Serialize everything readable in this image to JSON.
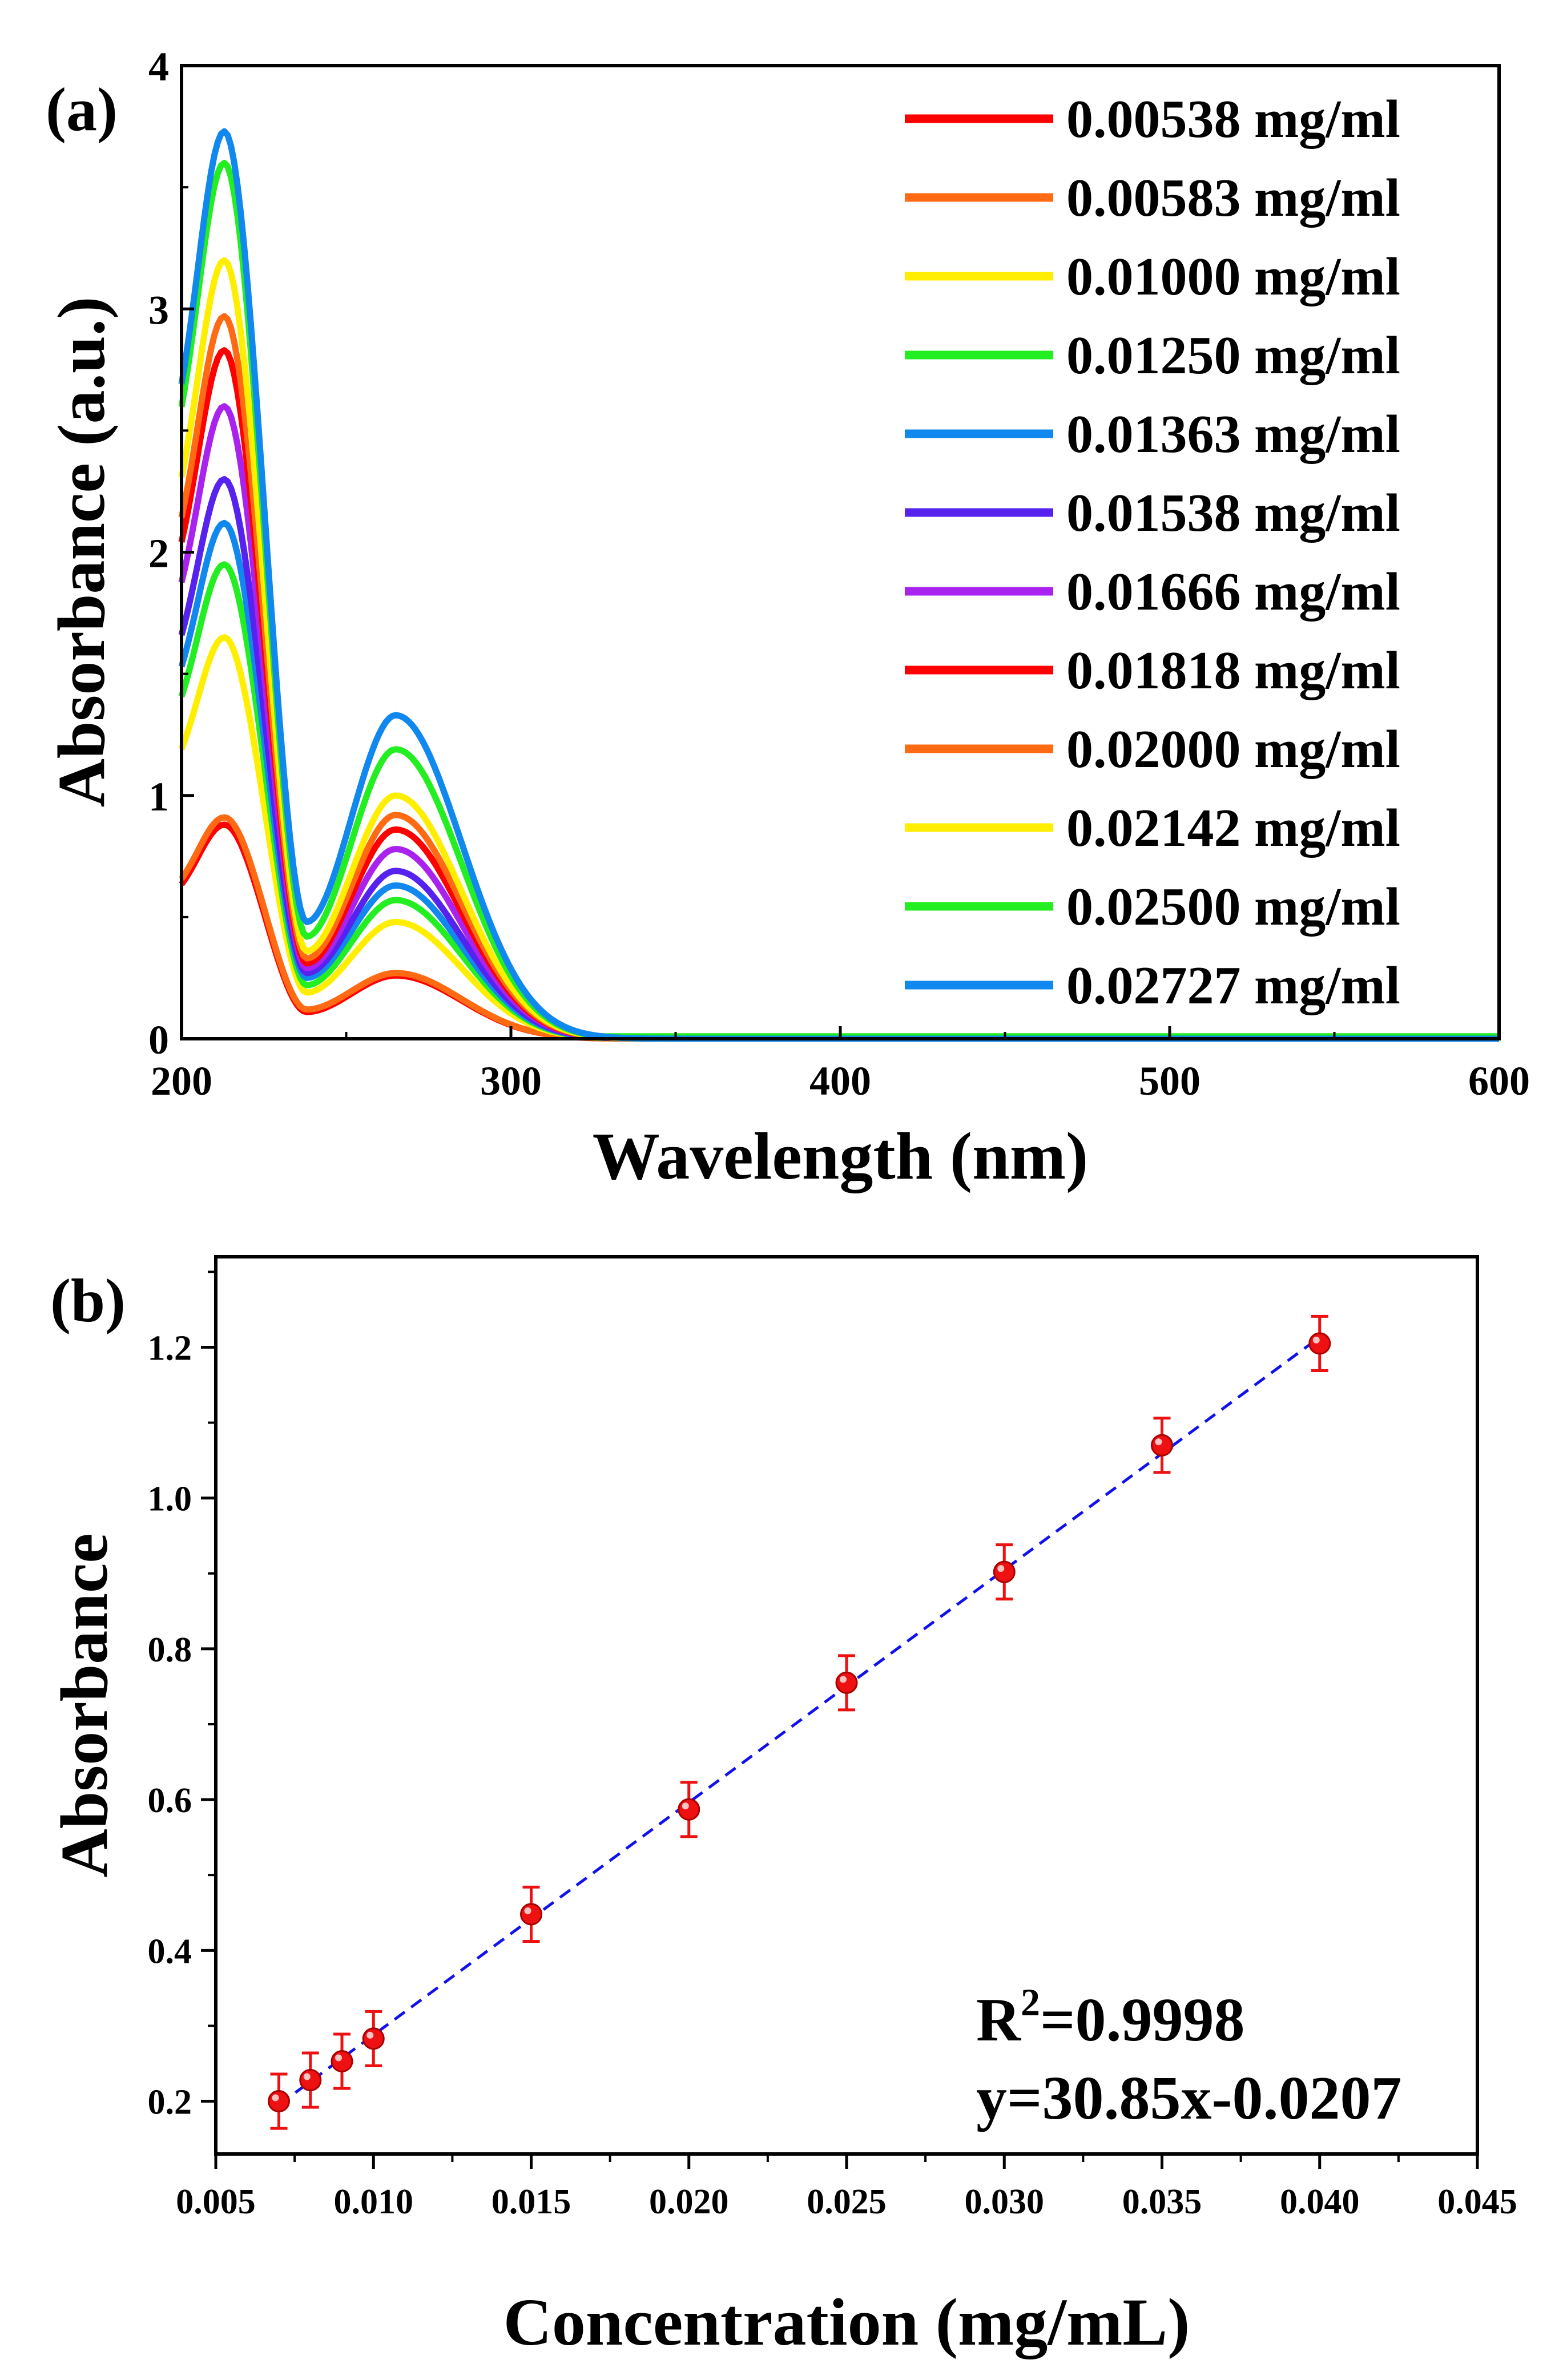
{
  "chart_data": [
    {
      "type": "line",
      "panel_label": "(a)",
      "title": "",
      "xlabel": "Wavelength (nm)",
      "ylabel": "Absorbance (a.u.)",
      "xlim": [
        200,
        600
      ],
      "ylim": [
        0,
        4
      ],
      "xticks": [
        "200",
        "300",
        "400",
        "500",
        "600"
      ],
      "yticks": [
        "0",
        "1",
        "2",
        "3",
        "4"
      ],
      "legend_position": "top-right",
      "series": [
        {
          "name": "0.00538 mg/ml",
          "color": "#ff0000",
          "peak1": 0.88,
          "valley": 0.11,
          "peak2": 0.26,
          "tail": 0.0
        },
        {
          "name": "0.00583 mg/ml",
          "color": "#ff6a13",
          "peak1": 0.91,
          "valley": 0.12,
          "peak2": 0.27,
          "tail": 0.0
        },
        {
          "name": "0.01000 mg/ml",
          "color": "#ffee00",
          "peak1": 1.65,
          "valley": 0.19,
          "peak2": 0.48,
          "tail": 0.0
        },
        {
          "name": "0.01250 mg/ml",
          "color": "#22ee22",
          "peak1": 1.95,
          "valley": 0.22,
          "peak2": 0.57,
          "tail": 0.0
        },
        {
          "name": "0.01363 mg/ml",
          "color": "#1188ee",
          "peak1": 2.12,
          "valley": 0.25,
          "peak2": 0.63,
          "tail": 0.0
        },
        {
          "name": "0.01538 mg/ml",
          "color": "#5522ee",
          "peak1": 2.3,
          "valley": 0.27,
          "peak2": 0.69,
          "tail": 0.0
        },
        {
          "name": "0.01666 mg/ml",
          "color": "#aa22ee",
          "peak1": 2.6,
          "valley": 0.29,
          "peak2": 0.78,
          "tail": 0.0
        },
        {
          "name": "0.01818 mg/ml",
          "color": "#ff0000",
          "peak1": 2.83,
          "valley": 0.31,
          "peak2": 0.86,
          "tail": 0.0
        },
        {
          "name": "0.02000 mg/ml",
          "color": "#ff6a13",
          "peak1": 2.97,
          "valley": 0.33,
          "peak2": 0.92,
          "tail": 0.0
        },
        {
          "name": "0.02142 mg/ml",
          "color": "#ffee00",
          "peak1": 3.2,
          "valley": 0.36,
          "peak2": 1.0,
          "tail": 0.0
        },
        {
          "name": "0.02500 mg/ml",
          "color": "#22ee22",
          "peak1": 3.6,
          "valley": 0.42,
          "peak2": 1.19,
          "tail": 0.01
        },
        {
          "name": "0.02727 mg/ml",
          "color": "#1188ee",
          "peak1": 3.73,
          "valley": 0.48,
          "peak2": 1.33,
          "tail": 0.0
        }
      ]
    },
    {
      "type": "scatter",
      "panel_label": "(b)",
      "title": "",
      "xlabel": "Concentration (mg/mL)",
      "ylabel": "Absorbance",
      "xlim": [
        0.005,
        0.045
      ],
      "ylim": [
        0.13,
        1.32
      ],
      "xticks": [
        "0.005",
        "0.010",
        "0.015",
        "0.020",
        "0.025",
        "0.030",
        "0.035",
        "0.040",
        "0.045"
      ],
      "yticks": [
        "0.2",
        "0.4",
        "0.6",
        "0.8",
        "1.0",
        "1.2"
      ],
      "x": [
        0.007,
        0.008,
        0.009,
        0.01,
        0.015,
        0.02,
        0.025,
        0.03,
        0.035,
        0.04
      ],
      "y": [
        0.2,
        0.228,
        0.253,
        0.283,
        0.448,
        0.587,
        0.755,
        0.902,
        1.07,
        1.205
      ],
      "error": [
        0.036,
        0.036,
        0.036,
        0.036,
        0.036,
        0.036,
        0.036,
        0.036,
        0.036,
        0.036
      ],
      "marker_color": "#ee1111",
      "fit": {
        "slope": 30.85,
        "intercept": -0.0207,
        "x_range": [
          0.007,
          0.04
        ],
        "color": "#1111ee"
      },
      "annotation": {
        "r2_prefix": "R",
        "r2_sup": "2",
        "r2_value": "=0.9998",
        "equation": "y=30.85x-0.0207",
        "position": "bottom-right"
      }
    }
  ]
}
